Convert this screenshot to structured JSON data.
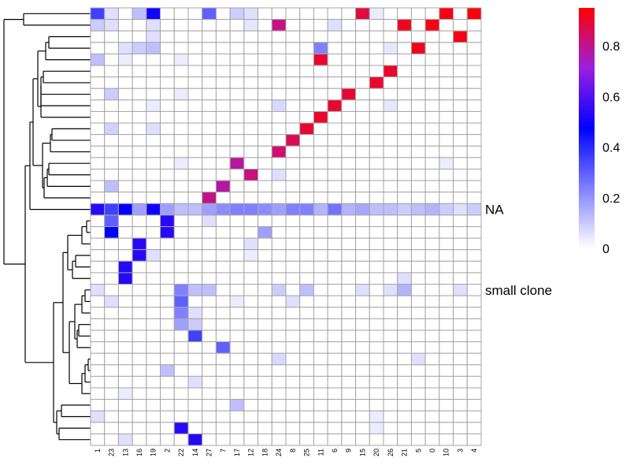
{
  "chart_data": {
    "type": "heatmap",
    "columns": [
      "1",
      "23",
      "13",
      "16",
      "19",
      "2",
      "22",
      "14",
      "27",
      "7",
      "17",
      "12",
      "18",
      "24",
      "8",
      "25",
      "11",
      "6",
      "9",
      "15",
      "20",
      "26",
      "21",
      "5",
      "0",
      "10",
      "3",
      "4"
    ],
    "row_labels": {
      "11": "NA",
      "16": "small clone"
    },
    "n_rows": 27,
    "color_scale": {
      "min": 0,
      "max": 0.95,
      "stops": [
        "#ffffff",
        "#0000ff",
        "#ff0000"
      ],
      "ticks": [
        "0",
        "0.2",
        "0.4",
        "0.6",
        "0.8"
      ]
    },
    "colorbar_ticks": [
      {
        "value": 0,
        "label": "0"
      },
      {
        "value": 0.2,
        "label": "0.2"
      },
      {
        "value": 0.4,
        "label": "0.4"
      },
      {
        "value": 0.6,
        "label": "0.6"
      },
      {
        "value": 0.8,
        "label": "0.8"
      }
    ],
    "cells": [
      [
        0,
        0,
        0.3
      ],
      [
        0,
        1,
        0.05
      ],
      [
        0,
        3,
        0.1
      ],
      [
        0,
        4,
        0.42
      ],
      [
        0,
        8,
        0.25
      ],
      [
        0,
        10,
        0.08
      ],
      [
        0,
        11,
        0.05
      ],
      [
        0,
        19,
        0.85
      ],
      [
        0,
        20,
        0.03
      ],
      [
        0,
        25,
        0.92
      ],
      [
        0,
        27,
        0.93
      ],
      [
        1,
        0,
        0.08
      ],
      [
        1,
        1,
        0.05
      ],
      [
        1,
        4,
        0.05
      ],
      [
        1,
        11,
        0.04
      ],
      [
        1,
        13,
        0.75
      ],
      [
        1,
        17,
        0.05
      ],
      [
        1,
        22,
        0.9
      ],
      [
        1,
        24,
        0.92
      ],
      [
        2,
        4,
        0.05
      ],
      [
        2,
        26,
        0.92
      ],
      [
        3,
        2,
        0.05
      ],
      [
        3,
        3,
        0.08
      ],
      [
        3,
        4,
        0.1
      ],
      [
        3,
        16,
        0.2
      ],
      [
        3,
        21,
        0.04
      ],
      [
        3,
        23,
        0.9
      ],
      [
        4,
        0,
        0.1
      ],
      [
        4,
        2,
        0.03
      ],
      [
        4,
        6,
        0.03
      ],
      [
        4,
        16,
        0.87
      ],
      [
        5,
        21,
        0.88
      ],
      [
        6,
        20,
        0.88
      ],
      [
        7,
        1,
        0.08
      ],
      [
        7,
        6,
        0.03
      ],
      [
        7,
        18,
        0.87
      ],
      [
        8,
        4,
        0.03
      ],
      [
        8,
        13,
        0.06
      ],
      [
        8,
        17,
        0.87
      ],
      [
        8,
        21,
        0.04
      ],
      [
        9,
        16,
        0.88
      ],
      [
        10,
        1,
        0.07
      ],
      [
        10,
        4,
        0.05
      ],
      [
        10,
        15,
        0.87
      ],
      [
        11,
        14,
        0.82
      ],
      [
        12,
        13,
        0.78
      ],
      [
        13,
        6,
        0.03
      ],
      [
        13,
        10,
        0.7
      ],
      [
        13,
        25,
        0.03
      ],
      [
        14,
        11,
        0.76
      ],
      [
        14,
        13,
        0.05
      ],
      [
        15,
        1,
        0.1
      ],
      [
        15,
        9,
        0.7
      ],
      [
        16,
        8,
        0.74
      ],
      [
        17,
        0,
        0.45
      ],
      [
        17,
        1,
        0.3
      ],
      [
        17,
        2,
        0.4
      ],
      [
        17,
        3,
        0.15
      ],
      [
        17,
        4,
        0.42
      ],
      [
        17,
        5,
        0.15
      ],
      [
        17,
        6,
        0.1
      ],
      [
        17,
        7,
        0.1
      ],
      [
        17,
        8,
        0.15
      ],
      [
        17,
        9,
        0.18
      ],
      [
        17,
        10,
        0.2
      ],
      [
        17,
        11,
        0.2
      ],
      [
        17,
        12,
        0.18
      ],
      [
        17,
        13,
        0.15
      ],
      [
        17,
        14,
        0.2
      ],
      [
        17,
        15,
        0.2
      ],
      [
        17,
        16,
        0.12
      ],
      [
        17,
        17,
        0.22
      ],
      [
        17,
        18,
        0.12
      ],
      [
        17,
        19,
        0.14
      ],
      [
        17,
        20,
        0.1
      ],
      [
        17,
        21,
        0.1
      ],
      [
        17,
        22,
        0.08
      ],
      [
        17,
        23,
        0.1
      ],
      [
        17,
        24,
        0.12
      ],
      [
        17,
        25,
        0.08
      ],
      [
        17,
        26,
        0.05
      ],
      [
        17,
        27,
        0.08
      ],
      [
        18,
        1,
        0.25
      ],
      [
        18,
        5,
        0.45
      ],
      [
        18,
        8,
        0.05
      ],
      [
        19,
        1,
        0.4
      ],
      [
        19,
        5,
        0.45
      ],
      [
        19,
        12,
        0.15
      ],
      [
        20,
        3,
        0.45
      ],
      [
        20,
        11,
        0.05
      ],
      [
        21,
        3,
        0.45
      ],
      [
        21,
        4,
        0.05
      ],
      [
        21,
        11,
        0.03
      ],
      [
        22,
        2,
        0.45
      ],
      [
        23,
        2,
        0.45
      ],
      [
        23,
        22,
        0.05
      ],
      [
        24,
        0,
        0.05
      ],
      [
        24,
        6,
        0.2
      ],
      [
        24,
        7,
        0.1
      ],
      [
        24,
        8,
        0.1
      ],
      [
        24,
        13,
        0.08
      ],
      [
        24,
        15,
        0.1
      ],
      [
        24,
        19,
        0.05
      ],
      [
        24,
        21,
        0.05
      ],
      [
        24,
        22,
        0.12
      ],
      [
        24,
        26,
        0.05
      ],
      [
        25,
        1,
        0.05
      ],
      [
        25,
        6,
        0.25
      ],
      [
        25,
        10,
        0.03
      ],
      [
        25,
        14,
        0.05
      ],
      [
        26,
        6,
        0.2
      ],
      [
        26,
        7,
        0.05
      ],
      [
        27,
        6,
        0.15
      ],
      [
        27,
        7,
        0.08
      ],
      [
        28,
        7,
        0.3
      ],
      [
        29,
        9,
        0.25
      ],
      [
        30,
        13,
        0.06
      ],
      [
        30,
        23,
        0.05
      ],
      [
        31,
        5,
        0.1
      ],
      [
        32,
        7,
        0.05
      ],
      [
        33,
        2,
        0.03
      ],
      [
        34,
        10,
        0.1
      ],
      [
        35,
        0,
        0.05
      ],
      [
        35,
        20,
        0.03
      ],
      [
        36,
        6,
        0.45
      ],
      [
        36,
        20,
        0.03
      ],
      [
        37,
        2,
        0.05
      ],
      [
        37,
        7,
        0.45
      ]
    ]
  }
}
